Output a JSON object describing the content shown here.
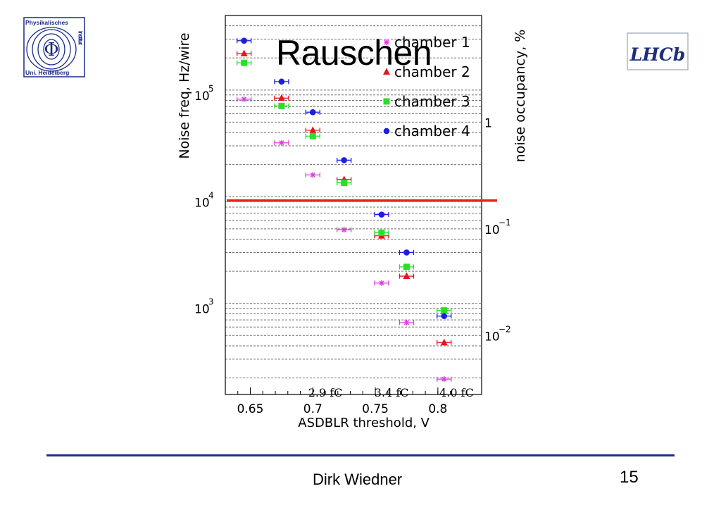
{
  "slide": {
    "title": "Rauschen",
    "author": "Dirk Wiedner",
    "page_number": "15",
    "left_logo": {
      "line1": "Physikalisches",
      "side": "Institut",
      "line2": "Uni. Heidelberg",
      "symbol": "Φ"
    },
    "right_logo": {
      "text": "LHCb"
    },
    "divider_color": "#1f2f86"
  },
  "chart_data": {
    "type": "scatter",
    "xlabel": "ASDBLR threshold, V",
    "ylabel": "Noise freq, Hz/wire",
    "y2label": "noise occupancy, %",
    "xlim": [
      0.63,
      0.835
    ],
    "ylim": [
      140,
      500000
    ],
    "yscale": "log",
    "y2lim": [
      0.0028,
      10
    ],
    "y2scale": "log",
    "grid": true,
    "legend_position": "top-right",
    "x_ticks": [
      {
        "value": 0.65,
        "label": "0.65"
      },
      {
        "value": 0.7,
        "label": "0.7"
      },
      {
        "value": 0.75,
        "label": "0.75"
      },
      {
        "value": 0.8,
        "label": "0.8"
      }
    ],
    "y_ticks": [
      {
        "value": 1000,
        "base": "10",
        "exp": "3"
      },
      {
        "value": 10000,
        "base": "10",
        "exp": "4"
      },
      {
        "value": 100000,
        "base": "10",
        "exp": "5"
      }
    ],
    "y2_ticks": [
      {
        "value": 0.01,
        "base": "10",
        "exp": "−2"
      },
      {
        "value": 0.1,
        "base": "10",
        "exp": "−1"
      },
      {
        "value": 1,
        "base": "1",
        "exp": ""
      }
    ],
    "annotations": [
      {
        "x": 0.71,
        "text": "2.9 fC"
      },
      {
        "x": 0.763,
        "text": "3.4 fC"
      },
      {
        "x": 0.815,
        "text": "4.0 fC"
      }
    ],
    "reference_line": {
      "y": 9200,
      "color": "#e8221b"
    },
    "series": [
      {
        "name": "chamber 1",
        "marker": "star",
        "color": "#e23fe0",
        "points": [
          [
            0.645,
            82000
          ],
          [
            0.675,
            32000
          ],
          [
            0.7,
            16000
          ],
          [
            0.725,
            4900
          ],
          [
            0.755,
            1550
          ],
          [
            0.775,
            660
          ],
          [
            0.805,
            195
          ]
        ]
      },
      {
        "name": "chamber 2",
        "marker": "triangle",
        "color": "#e3161c",
        "points": [
          [
            0.645,
            220000
          ],
          [
            0.675,
            84000
          ],
          [
            0.7,
            42000
          ],
          [
            0.725,
            14500
          ],
          [
            0.755,
            4300
          ],
          [
            0.775,
            1800
          ],
          [
            0.805,
            430
          ]
        ]
      },
      {
        "name": "chamber 3",
        "marker": "square",
        "color": "#27e127",
        "points": [
          [
            0.645,
            180000
          ],
          [
            0.675,
            71000
          ],
          [
            0.7,
            37000
          ],
          [
            0.725,
            13500
          ],
          [
            0.755,
            4600
          ],
          [
            0.775,
            2200
          ],
          [
            0.805,
            860
          ]
        ]
      },
      {
        "name": "chamber 4",
        "marker": "circle",
        "color": "#1a1ee3",
        "points": [
          [
            0.645,
            290000
          ],
          [
            0.675,
            120000
          ],
          [
            0.7,
            62000
          ],
          [
            0.725,
            22000
          ],
          [
            0.755,
            6800
          ],
          [
            0.775,
            3000
          ],
          [
            0.805,
            760
          ]
        ]
      }
    ]
  }
}
